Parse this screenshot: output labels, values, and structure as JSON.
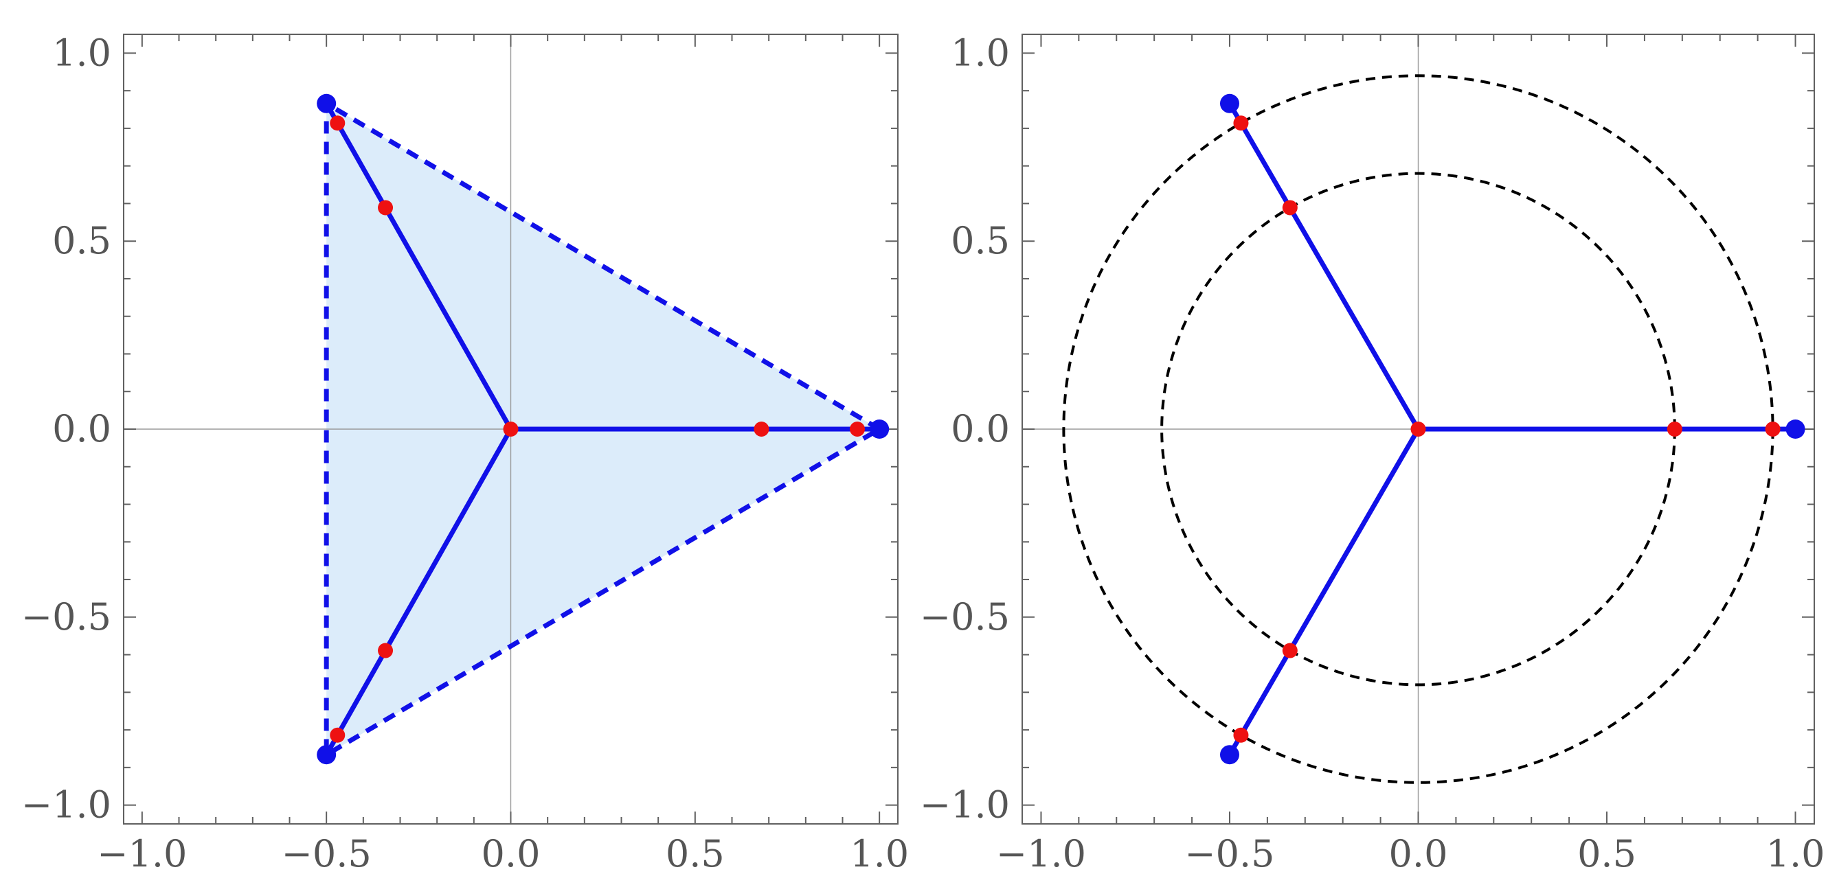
{
  "colors": {
    "segment": "#1010e8",
    "polygon_fill": "#dcecfa",
    "polygon_edge": "#1010e8",
    "vertex_point": "#1010e8",
    "inner_point": "#ee1111",
    "circle": "#000000",
    "frame": "#606060",
    "axis": "#9a9a9a",
    "tick_label": "#555555"
  },
  "chart_data": [
    {
      "type": "scatter",
      "panel": "left",
      "xlim": [
        -1.05,
        1.05
      ],
      "ylim": [
        -1.05,
        1.05
      ],
      "x_ticks": [
        "-1.0",
        "-0.5",
        "0.0",
        "0.5",
        "1.0"
      ],
      "y_ticks": [
        "-1.0",
        "-0.5",
        "0.0",
        "0.5",
        "1.0"
      ],
      "grid": false,
      "axes_through_origin": true,
      "segments": [
        {
          "from": [
            0,
            0
          ],
          "to": [
            1.0,
            0.0
          ]
        },
        {
          "from": [
            0,
            0
          ],
          "to": [
            -0.5,
            0.866
          ]
        },
        {
          "from": [
            0,
            0
          ],
          "to": [
            -0.5,
            -0.866
          ]
        }
      ],
      "filled_triangle": {
        "vertices": [
          [
            1.0,
            0.0
          ],
          [
            -0.5,
            0.866
          ],
          [
            -0.5,
            -0.866
          ]
        ],
        "edge_style": "dashed"
      },
      "vertex_points": [
        [
          1.0,
          0.0
        ],
        [
          -0.5,
          0.866
        ],
        [
          -0.5,
          -0.866
        ]
      ],
      "inner_points": [
        [
          0,
          0
        ],
        [
          0.68,
          0
        ],
        [
          0.94,
          0
        ],
        [
          -0.34,
          0.589
        ],
        [
          -0.47,
          0.814
        ],
        [
          -0.34,
          -0.589
        ],
        [
          -0.47,
          -0.814
        ]
      ]
    },
    {
      "type": "scatter",
      "panel": "right",
      "xlim": [
        -1.05,
        1.05
      ],
      "ylim": [
        -1.05,
        1.05
      ],
      "x_ticks": [
        "-1.0",
        "-0.5",
        "0.0",
        "0.5",
        "1.0"
      ],
      "y_ticks": [
        "-1.0",
        "-0.5",
        "0.0",
        "0.5",
        "1.0"
      ],
      "grid": false,
      "axes_through_origin": true,
      "segments": [
        {
          "from": [
            0,
            0
          ],
          "to": [
            1.0,
            0.0
          ]
        },
        {
          "from": [
            0,
            0
          ],
          "to": [
            -0.5,
            0.866
          ]
        },
        {
          "from": [
            0,
            0
          ],
          "to": [
            -0.5,
            -0.866
          ]
        }
      ],
      "circles": [
        {
          "center": [
            0,
            0
          ],
          "radius": 0.68,
          "style": "dashed"
        },
        {
          "center": [
            0,
            0
          ],
          "radius": 0.94,
          "style": "dashed"
        }
      ],
      "vertex_points": [
        [
          1.0,
          0.0
        ],
        [
          -0.5,
          0.866
        ],
        [
          -0.5,
          -0.866
        ]
      ],
      "inner_points": [
        [
          0,
          0
        ],
        [
          0.68,
          0
        ],
        [
          0.94,
          0
        ],
        [
          -0.34,
          0.589
        ],
        [
          -0.47,
          0.814
        ],
        [
          -0.34,
          -0.589
        ],
        [
          -0.47,
          -0.814
        ]
      ]
    }
  ]
}
